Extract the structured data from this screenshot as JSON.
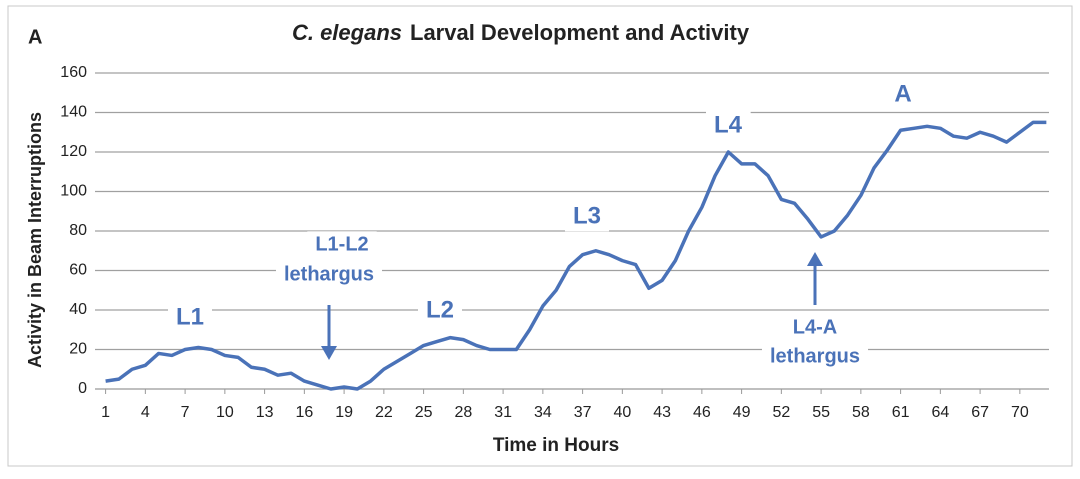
{
  "chart_data": {
    "type": "line",
    "panel_label": "A",
    "title_italic": "C. elegans",
    "title": "Larval Development and Activity",
    "x_label": "Time in Hours",
    "y_label": "Activity in Beam Interruptions",
    "x": [
      1,
      2,
      3,
      4,
      5,
      6,
      7,
      8,
      9,
      10,
      11,
      12,
      13,
      14,
      15,
      16,
      17,
      18,
      19,
      20,
      21,
      22,
      23,
      24,
      25,
      26,
      27,
      28,
      29,
      30,
      31,
      32,
      33,
      34,
      35,
      36,
      37,
      38,
      39,
      40,
      41,
      42,
      43,
      44,
      45,
      46,
      47,
      48,
      49,
      50,
      51,
      52,
      53,
      54,
      55,
      56,
      57,
      58,
      59,
      60,
      61,
      62,
      63,
      64,
      65,
      66,
      67,
      68,
      69,
      70,
      71,
      72
    ],
    "series": [
      {
        "name": "Activity",
        "color": "#4a72b8",
        "values": [
          4,
          5,
          10,
          12,
          18,
          17,
          20,
          21,
          20,
          17,
          16,
          11,
          10,
          7,
          8,
          4,
          2,
          0,
          1,
          0,
          4,
          10,
          14,
          18,
          22,
          24,
          26,
          25,
          22,
          20,
          20,
          20,
          30,
          42,
          50,
          62,
          68,
          70,
          68,
          65,
          63,
          51,
          55,
          65,
          80,
          92,
          108,
          120,
          114,
          114,
          108,
          96,
          94,
          86,
          77,
          80,
          88,
          98,
          112,
          121,
          131,
          132,
          133,
          132,
          128,
          127,
          130,
          128,
          125,
          130,
          135,
          135
        ]
      }
    ],
    "xlim": [
      0.2,
      72.2
    ],
    "xticks": [
      1,
      4,
      7,
      10,
      13,
      16,
      19,
      22,
      25,
      28,
      31,
      34,
      37,
      40,
      43,
      46,
      49,
      52,
      55,
      58,
      61,
      64,
      67,
      70
    ],
    "ylim": [
      0,
      160
    ],
    "yticks": [
      0,
      20,
      40,
      60,
      80,
      100,
      120,
      140,
      160
    ],
    "grid": true,
    "annotations": [
      "L1",
      "L1-L2",
      "lethargus",
      "L2",
      "L3",
      "L4",
      "L4-A",
      "lethargus",
      "A"
    ]
  }
}
